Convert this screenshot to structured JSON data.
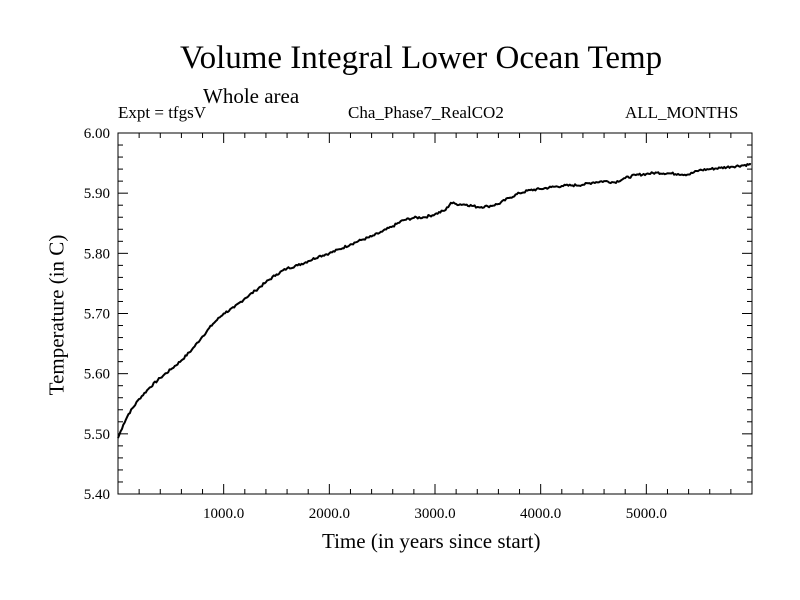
{
  "chart_data": {
    "type": "line",
    "title": "Volume Integral Lower Ocean Temp",
    "subtitle": "Whole area",
    "experiment": "Expt = tfgsV",
    "run_name": "Cha_Phase7_RealCO2",
    "months": "ALL_MONTHS",
    "xlabel": "Time (in years since start)",
    "ylabel": "Temperature (in C)",
    "xlim": [
      0,
      6000
    ],
    "ylim": [
      5.4,
      6.0
    ],
    "xticks": [
      1000,
      2000,
      3000,
      4000,
      5000
    ],
    "xtick_labels": [
      "1000.0",
      "2000.0",
      "3000.0",
      "4000.0",
      "5000.0"
    ],
    "yticks": [
      5.4,
      5.5,
      5.6,
      5.7,
      5.8,
      5.9,
      6.0
    ],
    "ytick_labels": [
      "5.40",
      "5.50",
      "5.60",
      "5.70",
      "5.80",
      "5.90",
      "6.00"
    ],
    "grid": false,
    "series": [
      {
        "name": "Volume Integral Lower Ocean Temp",
        "x": [
          0,
          50,
          100,
          200,
          300,
          400,
          500,
          600,
          700,
          800,
          900,
          1000,
          1100,
          1200,
          1300,
          1400,
          1500,
          1600,
          1700,
          1800,
          1900,
          2000,
          2100,
          2200,
          2300,
          2400,
          2500,
          2600,
          2700,
          2800,
          2900,
          3000,
          3100,
          3150,
          3200,
          3300,
          3400,
          3500,
          3600,
          3700,
          3800,
          3900,
          4000,
          4100,
          4200,
          4300,
          4400,
          4500,
          4600,
          4700,
          4800,
          4900,
          5000,
          5100,
          5200,
          5300,
          5400,
          5500,
          5600,
          5700,
          5800,
          5900,
          5990
        ],
        "y": [
          5.493,
          5.515,
          5.533,
          5.558,
          5.577,
          5.593,
          5.607,
          5.622,
          5.64,
          5.662,
          5.683,
          5.7,
          5.71,
          5.725,
          5.738,
          5.752,
          5.765,
          5.775,
          5.78,
          5.787,
          5.795,
          5.8,
          5.807,
          5.815,
          5.822,
          5.828,
          5.836,
          5.845,
          5.855,
          5.859,
          5.86,
          5.865,
          5.872,
          5.884,
          5.882,
          5.881,
          5.877,
          5.878,
          5.882,
          5.892,
          5.9,
          5.905,
          5.907,
          5.91,
          5.912,
          5.913,
          5.914,
          5.918,
          5.92,
          5.918,
          5.925,
          5.93,
          5.932,
          5.934,
          5.933,
          5.932,
          5.931,
          5.938,
          5.94,
          5.942,
          5.944,
          5.946,
          5.948
        ]
      }
    ]
  }
}
